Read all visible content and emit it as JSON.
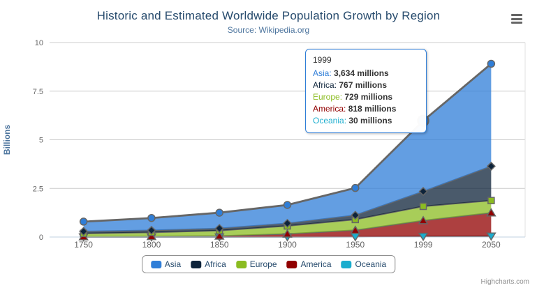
{
  "header": {
    "title": "Historic and Estimated Worldwide Population Growth by Region",
    "subtitle": "Source: Wikipedia.org"
  },
  "context_menu": {
    "icon": "hamburger-icon"
  },
  "chart_data": {
    "type": "area",
    "stacking": "normal",
    "title": "Historic and Estimated Worldwide Population Growth by Region",
    "subtitle": "Source: Wikipedia.org",
    "categories": [
      "1750",
      "1800",
      "1850",
      "1900",
      "1950",
      "1999",
      "2050"
    ],
    "xlabel": "",
    "ylabel": "Billions",
    "ylim": [
      0,
      10
    ],
    "yticks": [
      0,
      2.5,
      5,
      7.5,
      10
    ],
    "ytick_labels": [
      "0",
      "2.5",
      "5",
      "7.5",
      "10"
    ],
    "value_unit": "millions",
    "grid": true,
    "legend_position": "bottom",
    "stack_order": "last-series-at-bottom",
    "fill_opacity": 0.75,
    "line_color": "#666666",
    "axis_line_color": "#c0d0e0",
    "grid_color": "#cccccc",
    "series": [
      {
        "name": "Asia",
        "color": "#2f7ed8",
        "marker": "circle",
        "values": [
          502,
          635,
          809,
          947,
          1402,
          3634,
          5268
        ]
      },
      {
        "name": "Africa",
        "color": "#0d233a",
        "marker": "diamond",
        "values": [
          106,
          107,
          111,
          133,
          221,
          767,
          1766
        ]
      },
      {
        "name": "Europe",
        "color": "#8bbc21",
        "marker": "square",
        "values": [
          163,
          203,
          276,
          408,
          547,
          729,
          628
        ]
      },
      {
        "name": "America",
        "color": "#910000",
        "marker": "triangle",
        "values": [
          18,
          31,
          54,
          156,
          339,
          818,
          1201
        ]
      },
      {
        "name": "Oceania",
        "color": "#1aadce",
        "marker": "triangle-down",
        "values": [
          2,
          2,
          2,
          6,
          13,
          30,
          46
        ]
      }
    ],
    "highlight": {
      "series": "Asia",
      "category_index": 5
    }
  },
  "tooltip": {
    "header": "1999",
    "rows": [
      {
        "label": "Asia:",
        "value": "3,634 millions"
      },
      {
        "label": "Africa:",
        "value": "767 millions"
      },
      {
        "label": "Europe:",
        "value": "729 millions"
      },
      {
        "label": "America:",
        "value": "818 millions"
      },
      {
        "label": "Oceania:",
        "value": "30 millions"
      }
    ]
  },
  "credits": {
    "label": "Highcharts.com"
  }
}
